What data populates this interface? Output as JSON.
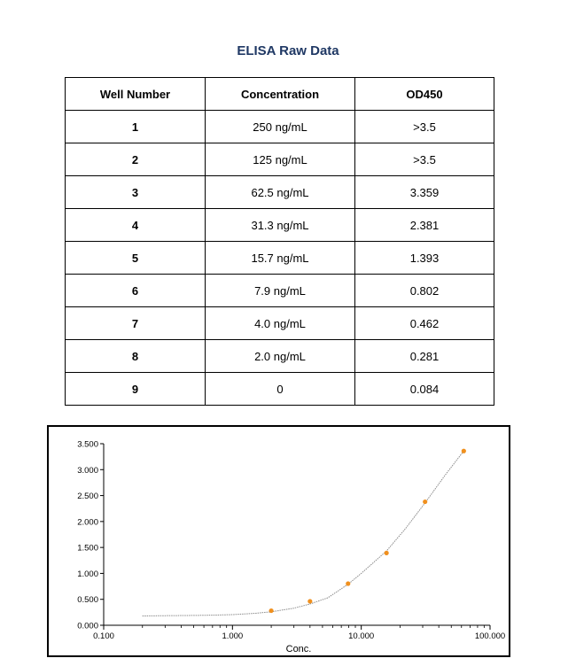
{
  "title": "ELISA Raw Data",
  "table": {
    "headers": [
      "Well Number",
      "Concentration",
      "OD450"
    ],
    "rows": [
      [
        "1",
        "250 ng/mL",
        ">3.5"
      ],
      [
        "2",
        "125 ng/mL",
        ">3.5"
      ],
      [
        "3",
        "62.5 ng/mL",
        "3.359"
      ],
      [
        "4",
        "31.3 ng/mL",
        "2.381"
      ],
      [
        "5",
        "15.7 ng/mL",
        "1.393"
      ],
      [
        "6",
        "7.9 ng/mL",
        "0.802"
      ],
      [
        "7",
        "4.0 ng/mL",
        "0.462"
      ],
      [
        "8",
        "2.0 ng/mL",
        "0.281"
      ],
      [
        "9",
        "0",
        "0.084"
      ]
    ]
  },
  "chart_data": {
    "type": "scatter",
    "x_scale": "log",
    "xlim": [
      0.1,
      100
    ],
    "ylim": [
      0,
      3.5
    ],
    "xlabel": "Conc.",
    "ylabel": "",
    "title": "",
    "x_ticks": [
      "0.100",
      "1.000",
      "10.000",
      "100.000"
    ],
    "y_ticks": [
      "0.000",
      "0.500",
      "1.000",
      "1.500",
      "2.000",
      "2.500",
      "3.000",
      "3.500"
    ],
    "grid": false,
    "points": {
      "x": [
        2.0,
        4.0,
        7.9,
        15.7,
        31.3,
        62.5
      ],
      "y": [
        0.281,
        0.462,
        0.802,
        1.393,
        2.381,
        3.359
      ],
      "color": "#f0901e"
    },
    "fit_curve": {
      "color": "#8a8a8a",
      "x": [
        0.2,
        0.3,
        0.5,
        0.7,
        1.0,
        1.5,
        2.0,
        3.0,
        4.0,
        5.5,
        7.9,
        10.0,
        15.7,
        22.0,
        31.3,
        45.0,
        62.5
      ],
      "y": [
        0.18,
        0.185,
        0.19,
        0.195,
        0.205,
        0.23,
        0.26,
        0.33,
        0.41,
        0.53,
        0.79,
        1.0,
        1.43,
        1.86,
        2.36,
        2.9,
        3.36
      ]
    }
  }
}
